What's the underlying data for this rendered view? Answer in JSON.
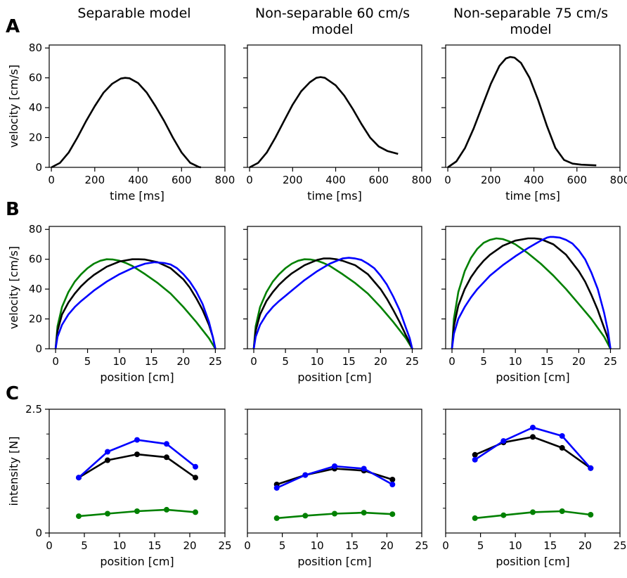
{
  "figure": {
    "columns": [
      {
        "title": [
          "Separable model"
        ]
      },
      {
        "title": [
          "Non-separable 60 cm/s",
          "model"
        ]
      },
      {
        "title": [
          "Non-separable 75 cm/s",
          "model"
        ]
      }
    ],
    "row_labels": [
      "A",
      "B",
      "C"
    ]
  },
  "colors": {
    "black": "#000000",
    "blue": "#0000ff",
    "green": "#008000"
  },
  "chart_data": [
    {
      "panel": "A-1",
      "type": "line",
      "xlabel": "time [ms]",
      "ylabel": "velocity [cm/s]",
      "xlim": [
        -10,
        800
      ],
      "ylim": [
        0,
        82
      ],
      "xticks": [
        0,
        200,
        400,
        600,
        800
      ],
      "yticks": [
        0,
        20,
        40,
        60,
        80
      ],
      "series": [
        {
          "color": "black",
          "x": [
            0,
            40,
            80,
            120,
            160,
            200,
            240,
            280,
            320,
            340,
            360,
            400,
            440,
            480,
            520,
            560,
            600,
            640,
            680,
            690
          ],
          "y": [
            0,
            3,
            10,
            20,
            31,
            41,
            50,
            56,
            59.5,
            60,
            59.7,
            56.5,
            50,
            41,
            31,
            20,
            10,
            3,
            0.2,
            0
          ]
        }
      ]
    },
    {
      "panel": "A-2",
      "type": "line",
      "xlabel": "time [ms]",
      "ylabel": "",
      "xlim": [
        -10,
        800
      ],
      "ylim": [
        0,
        82
      ],
      "xticks": [
        0,
        200,
        400,
        600,
        800
      ],
      "yticks": [
        0,
        20,
        40,
        60,
        80
      ],
      "series": [
        {
          "color": "black",
          "x": [
            0,
            40,
            80,
            120,
            160,
            200,
            240,
            280,
            310,
            330,
            350,
            400,
            440,
            480,
            520,
            560,
            600,
            640,
            690
          ],
          "y": [
            0,
            3,
            10,
            20,
            31,
            42,
            51,
            57,
            60,
            60.5,
            60,
            55,
            48,
            39,
            29,
            20,
            14,
            11,
            9
          ]
        }
      ]
    },
    {
      "panel": "A-3",
      "type": "line",
      "xlabel": "time [ms]",
      "ylabel": "",
      "xlim": [
        -10,
        800
      ],
      "ylim": [
        0,
        82
      ],
      "xticks": [
        0,
        200,
        400,
        600,
        800
      ],
      "yticks": [
        0,
        20,
        40,
        60,
        80
      ],
      "series": [
        {
          "color": "black",
          "x": [
            0,
            40,
            80,
            120,
            160,
            200,
            240,
            270,
            290,
            310,
            340,
            380,
            420,
            460,
            500,
            540,
            580,
            620,
            690
          ],
          "y": [
            0,
            4,
            13,
            26,
            41,
            56,
            68,
            73,
            74,
            73.5,
            70,
            60,
            45,
            28,
            13,
            5,
            2.5,
            1.8,
            1.3
          ]
        }
      ]
    },
    {
      "panel": "B-1",
      "type": "line",
      "xlabel": "position [cm]",
      "ylabel": "velocity [cm/s]",
      "xlim": [
        -1,
        26.5
      ],
      "ylim": [
        0,
        82
      ],
      "xticks": [
        0,
        5,
        10,
        15,
        20,
        25
      ],
      "yticks": [
        0,
        20,
        40,
        60,
        80
      ],
      "series": [
        {
          "color": "green",
          "x": [
            0,
            0.3,
            1,
            2,
            3,
            4,
            5,
            6,
            7,
            8,
            9,
            10,
            11,
            12,
            14,
            16,
            18,
            20,
            22,
            24,
            25
          ],
          "y": [
            0,
            15,
            28,
            38,
            45,
            50,
            54,
            57,
            59,
            60,
            59.8,
            59,
            57.5,
            55.5,
            50,
            44,
            37,
            28,
            18,
            7,
            0
          ]
        },
        {
          "color": "black",
          "x": [
            0,
            0.3,
            1,
            2,
            3,
            4,
            5,
            6,
            8,
            10,
            12,
            13,
            14,
            16,
            18,
            20,
            21,
            22,
            23,
            24,
            24.6,
            25
          ],
          "y": [
            0,
            12,
            23,
            31,
            37,
            42,
            46,
            49.5,
            55,
            58.5,
            60,
            60,
            59.8,
            58,
            54,
            46.5,
            41,
            34,
            26,
            16,
            8,
            0
          ]
        },
        {
          "color": "blue",
          "x": [
            0,
            0.3,
            1,
            2,
            3,
            4,
            5,
            6,
            8,
            10,
            12,
            14,
            15.5,
            17,
            18,
            19,
            20,
            21,
            22,
            23,
            24,
            24.6,
            25
          ],
          "y": [
            0,
            8,
            16,
            23,
            28,
            32,
            35.5,
            39,
            45,
            50,
            54,
            57,
            58,
            57.5,
            56.5,
            54,
            50,
            45,
            38.5,
            30,
            18,
            8,
            0
          ]
        }
      ]
    },
    {
      "panel": "B-2",
      "type": "line",
      "xlabel": "position [cm]",
      "ylabel": "",
      "xlim": [
        -1,
        26.5
      ],
      "ylim": [
        0,
        82
      ],
      "xticks": [
        0,
        5,
        10,
        15,
        20,
        25
      ],
      "yticks": [
        0,
        20,
        40,
        60,
        80
      ],
      "series": [
        {
          "color": "green",
          "x": [
            0,
            0.3,
            1,
            2,
            3,
            4,
            5,
            6,
            7,
            8,
            9,
            10,
            11,
            12,
            14,
            16,
            18,
            20,
            22,
            24,
            25
          ],
          "y": [
            0,
            15,
            28,
            38,
            45,
            50,
            54,
            57,
            59,
            60,
            59.8,
            59,
            57.5,
            55.5,
            50,
            44,
            37,
            28,
            18,
            7,
            0
          ]
        },
        {
          "color": "black",
          "x": [
            0,
            0.3,
            1,
            2,
            3,
            4,
            5,
            6,
            8,
            10,
            11,
            12,
            13,
            14,
            16,
            18,
            20,
            21,
            22,
            23,
            24,
            24.6,
            25
          ],
          "y": [
            0,
            12,
            23,
            32,
            38,
            43,
            47,
            50.5,
            56,
            59.5,
            60.5,
            60.5,
            60,
            59,
            56,
            50,
            40,
            33.5,
            26,
            18,
            9,
            4,
            0
          ]
        },
        {
          "color": "blue",
          "x": [
            0,
            0.3,
            1,
            2,
            3,
            4,
            5,
            6,
            8,
            10,
            12,
            14,
            15,
            16,
            17,
            18,
            19,
            20,
            21,
            22,
            23,
            24,
            24.6,
            25
          ],
          "y": [
            0,
            8,
            16,
            23,
            28,
            32,
            35.5,
            39,
            46,
            52,
            57,
            60.5,
            61,
            60.5,
            59.5,
            57,
            54,
            49,
            43,
            35,
            26,
            14,
            7,
            0
          ]
        }
      ]
    },
    {
      "panel": "B-3",
      "type": "line",
      "xlabel": "position [cm]",
      "ylabel": "",
      "xlim": [
        -1,
        26.5
      ],
      "ylim": [
        0,
        82
      ],
      "xticks": [
        0,
        5,
        10,
        15,
        20,
        25
      ],
      "yticks": [
        0,
        20,
        40,
        60,
        80
      ],
      "series": [
        {
          "color": "green",
          "x": [
            0,
            0.3,
            1,
            2,
            3,
            4,
            5,
            6,
            7,
            8,
            9,
            10,
            12,
            14,
            16,
            18,
            20,
            22,
            24,
            25
          ],
          "y": [
            0,
            20,
            38,
            52,
            61,
            67,
            71,
            73,
            74,
            73.5,
            72,
            70,
            64,
            57,
            49,
            40,
            30,
            20,
            8,
            0
          ]
        },
        {
          "color": "black",
          "x": [
            0,
            0.3,
            1,
            2,
            3,
            4,
            5,
            6,
            8,
            10,
            12,
            13,
            14,
            16,
            18,
            20,
            21,
            22,
            23,
            24,
            24.6,
            25
          ],
          "y": [
            0,
            15,
            29,
            40,
            48,
            54,
            59,
            63,
            69,
            72.5,
            74,
            74,
            73.5,
            70,
            63,
            52,
            45,
            36,
            26,
            14,
            7,
            0
          ]
        },
        {
          "color": "blue",
          "x": [
            0,
            0.3,
            1,
            2,
            3,
            4,
            5,
            6,
            8,
            10,
            12,
            14,
            15,
            15.5,
            16,
            17,
            18,
            19,
            20,
            21,
            22,
            23,
            24,
            24.6,
            25
          ],
          "y": [
            0,
            10,
            20,
            28,
            34.5,
            40,
            44.5,
            49,
            56,
            62,
            67.5,
            72.5,
            74.5,
            75,
            75,
            74.5,
            73,
            70.5,
            66,
            60,
            51,
            40,
            24,
            12,
            0
          ]
        }
      ]
    },
    {
      "panel": "C-1",
      "type": "line",
      "xlabel": "position [cm]",
      "ylabel": "intensity [N]",
      "xlim": [
        0,
        25
      ],
      "ylim": [
        0,
        2.5
      ],
      "xticks": [
        0,
        5,
        10,
        15,
        20,
        25
      ],
      "yticks": [
        0,
        2.5
      ],
      "minor_yticks": [
        0.5,
        1.0,
        1.5,
        2.0
      ],
      "series": [
        {
          "color": "black",
          "x": [
            4.2,
            8.3,
            12.5,
            16.7,
            20.8
          ],
          "y": [
            1.12,
            1.47,
            1.59,
            1.53,
            1.12
          ]
        },
        {
          "color": "blue",
          "x": [
            4.2,
            8.3,
            12.5,
            16.7,
            20.8
          ],
          "y": [
            1.12,
            1.64,
            1.88,
            1.8,
            1.34
          ]
        },
        {
          "color": "green",
          "x": [
            4.2,
            8.3,
            12.5,
            16.7,
            20.8
          ],
          "y": [
            0.34,
            0.39,
            0.44,
            0.47,
            0.42
          ]
        }
      ]
    },
    {
      "panel": "C-2",
      "type": "line",
      "xlabel": "position [cm]",
      "ylabel": "",
      "xlim": [
        0,
        25
      ],
      "ylim": [
        0,
        2.5
      ],
      "xticks": [
        0,
        5,
        10,
        15,
        20,
        25
      ],
      "yticks": [],
      "minor_yticks": [
        0.5,
        1.0,
        1.5,
        2.0,
        2.5
      ],
      "series": [
        {
          "color": "black",
          "x": [
            4.2,
            8.3,
            12.5,
            16.7,
            20.8
          ],
          "y": [
            0.98,
            1.17,
            1.3,
            1.26,
            1.08
          ]
        },
        {
          "color": "blue",
          "x": [
            4.2,
            8.3,
            12.5,
            16.7,
            20.8
          ],
          "y": [
            0.91,
            1.17,
            1.35,
            1.3,
            0.98
          ]
        },
        {
          "color": "green",
          "x": [
            4.2,
            8.3,
            12.5,
            16.7,
            20.8
          ],
          "y": [
            0.3,
            0.35,
            0.39,
            0.41,
            0.38
          ]
        }
      ]
    },
    {
      "panel": "C-3",
      "type": "line",
      "xlabel": "position [cm]",
      "ylabel": "",
      "xlim": [
        0,
        25
      ],
      "ylim": [
        0,
        2.5
      ],
      "xticks": [
        0,
        5,
        10,
        15,
        20,
        25
      ],
      "yticks": [],
      "minor_yticks": [
        0.5,
        1.0,
        1.5,
        2.0,
        2.5
      ],
      "series": [
        {
          "color": "black",
          "x": [
            4.2,
            8.3,
            12.5,
            16.7,
            20.8
          ],
          "y": [
            1.58,
            1.83,
            1.94,
            1.72,
            1.31
          ]
        },
        {
          "color": "blue",
          "x": [
            4.2,
            8.3,
            12.5,
            16.7,
            20.8
          ],
          "y": [
            1.48,
            1.86,
            2.13,
            1.96,
            1.31
          ]
        },
        {
          "color": "green",
          "x": [
            4.2,
            8.3,
            12.5,
            16.7,
            20.8
          ],
          "y": [
            0.3,
            0.36,
            0.42,
            0.44,
            0.37
          ]
        }
      ]
    }
  ]
}
